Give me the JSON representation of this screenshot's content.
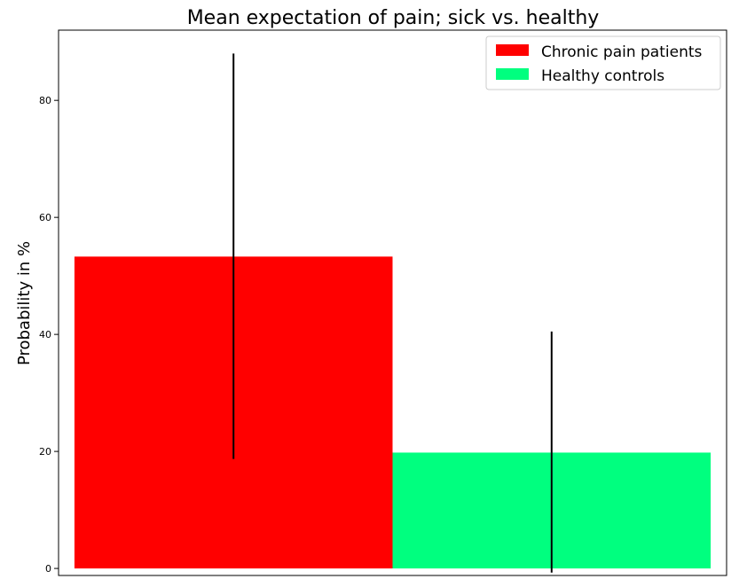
{
  "chart_data": {
    "type": "bar",
    "title": "Mean expectation of pain; sick vs. healthy",
    "xlabel": "",
    "ylabel": "Probability in %",
    "ylim": [
      -1.2,
      92
    ],
    "yticks": [
      0,
      20,
      40,
      60,
      80
    ],
    "grid": false,
    "legend_position": "top-right",
    "series": [
      {
        "name": "Chronic pain patients",
        "value": 53.3,
        "err_low": 18.7,
        "err_high": 88.0,
        "color": "#ff0000"
      },
      {
        "name": "Healthy controls",
        "value": 19.8,
        "err_low": -0.7,
        "err_high": 40.5,
        "color": "#00ff7f"
      }
    ],
    "errorbar_color": "#000000"
  }
}
